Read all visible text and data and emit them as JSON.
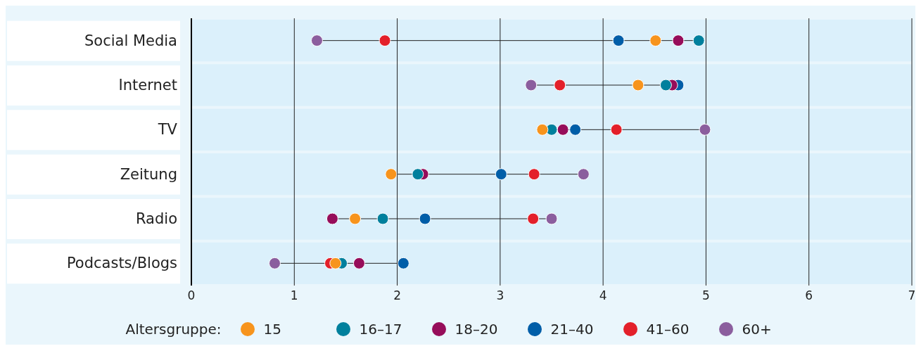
{
  "chart_data": {
    "type": "scatter",
    "orientation": "horizontal",
    "categories": [
      "Social Media",
      "Internet",
      "TV",
      "Zeitung",
      "Radio",
      "Podcasts/Blogs"
    ],
    "series": [
      {
        "name": "15",
        "color": "#f7941d",
        "values": [
          4.51,
          4.34,
          3.41,
          1.94,
          1.59,
          1.4
        ]
      },
      {
        "name": "16–17",
        "color": "#00809d",
        "values": [
          4.93,
          4.61,
          3.5,
          2.2,
          1.86,
          1.46
        ]
      },
      {
        "name": "18–20",
        "color": "#960d5a",
        "values": [
          4.73,
          4.67,
          3.61,
          2.25,
          1.37,
          1.63
        ]
      },
      {
        "name": "21–40",
        "color": "#005ea8",
        "values": [
          4.15,
          4.73,
          3.73,
          3.01,
          2.27,
          2.06
        ]
      },
      {
        "name": "41–60",
        "color": "#e3202a",
        "values": [
          1.88,
          3.58,
          4.13,
          3.33,
          3.32,
          1.35
        ]
      },
      {
        "name": "60+",
        "color": "#8b5e9e",
        "values": [
          1.22,
          3.3,
          4.99,
          3.81,
          3.5,
          0.81
        ]
      }
    ],
    "xlim": [
      0,
      7
    ],
    "xticks": [
      0,
      1,
      2,
      3,
      4,
      5,
      6,
      7
    ],
    "grid": "x",
    "legend": "bottom",
    "legend_title": "Altersgruppe:",
    "marker": "circle"
  }
}
